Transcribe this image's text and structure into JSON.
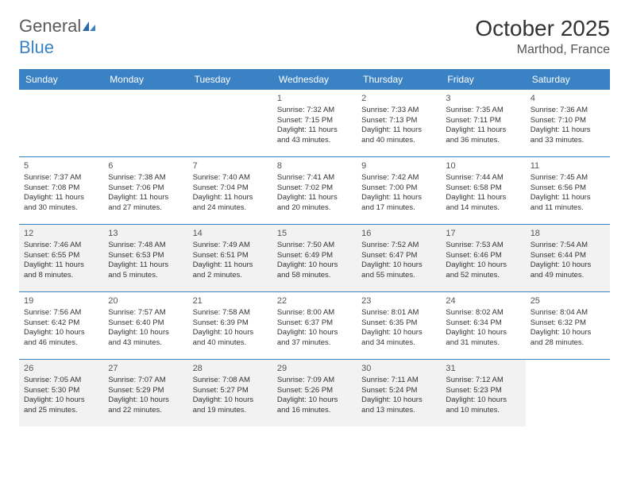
{
  "logo": {
    "text_general": "General",
    "text_blue": "Blue"
  },
  "title": "October 2025",
  "location": "Marthod, France",
  "colors": {
    "header_bg": "#3b82c4",
    "header_text": "#ffffff",
    "shaded_bg": "#f2f2f2",
    "border": "#3b82c4",
    "text": "#333333"
  },
  "day_names": [
    "Sunday",
    "Monday",
    "Tuesday",
    "Wednesday",
    "Thursday",
    "Friday",
    "Saturday"
  ],
  "weeks": [
    {
      "shaded": false,
      "days": [
        null,
        null,
        null,
        {
          "n": "1",
          "sr": "Sunrise: 7:32 AM",
          "ss": "Sunset: 7:15 PM",
          "d1": "Daylight: 11 hours",
          "d2": "and 43 minutes."
        },
        {
          "n": "2",
          "sr": "Sunrise: 7:33 AM",
          "ss": "Sunset: 7:13 PM",
          "d1": "Daylight: 11 hours",
          "d2": "and 40 minutes."
        },
        {
          "n": "3",
          "sr": "Sunrise: 7:35 AM",
          "ss": "Sunset: 7:11 PM",
          "d1": "Daylight: 11 hours",
          "d2": "and 36 minutes."
        },
        {
          "n": "4",
          "sr": "Sunrise: 7:36 AM",
          "ss": "Sunset: 7:10 PM",
          "d1": "Daylight: 11 hours",
          "d2": "and 33 minutes."
        }
      ]
    },
    {
      "shaded": false,
      "days": [
        {
          "n": "5",
          "sr": "Sunrise: 7:37 AM",
          "ss": "Sunset: 7:08 PM",
          "d1": "Daylight: 11 hours",
          "d2": "and 30 minutes."
        },
        {
          "n": "6",
          "sr": "Sunrise: 7:38 AM",
          "ss": "Sunset: 7:06 PM",
          "d1": "Daylight: 11 hours",
          "d2": "and 27 minutes."
        },
        {
          "n": "7",
          "sr": "Sunrise: 7:40 AM",
          "ss": "Sunset: 7:04 PM",
          "d1": "Daylight: 11 hours",
          "d2": "and 24 minutes."
        },
        {
          "n": "8",
          "sr": "Sunrise: 7:41 AM",
          "ss": "Sunset: 7:02 PM",
          "d1": "Daylight: 11 hours",
          "d2": "and 20 minutes."
        },
        {
          "n": "9",
          "sr": "Sunrise: 7:42 AM",
          "ss": "Sunset: 7:00 PM",
          "d1": "Daylight: 11 hours",
          "d2": "and 17 minutes."
        },
        {
          "n": "10",
          "sr": "Sunrise: 7:44 AM",
          "ss": "Sunset: 6:58 PM",
          "d1": "Daylight: 11 hours",
          "d2": "and 14 minutes."
        },
        {
          "n": "11",
          "sr": "Sunrise: 7:45 AM",
          "ss": "Sunset: 6:56 PM",
          "d1": "Daylight: 11 hours",
          "d2": "and 11 minutes."
        }
      ]
    },
    {
      "shaded": true,
      "days": [
        {
          "n": "12",
          "sr": "Sunrise: 7:46 AM",
          "ss": "Sunset: 6:55 PM",
          "d1": "Daylight: 11 hours",
          "d2": "and 8 minutes."
        },
        {
          "n": "13",
          "sr": "Sunrise: 7:48 AM",
          "ss": "Sunset: 6:53 PM",
          "d1": "Daylight: 11 hours",
          "d2": "and 5 minutes."
        },
        {
          "n": "14",
          "sr": "Sunrise: 7:49 AM",
          "ss": "Sunset: 6:51 PM",
          "d1": "Daylight: 11 hours",
          "d2": "and 2 minutes."
        },
        {
          "n": "15",
          "sr": "Sunrise: 7:50 AM",
          "ss": "Sunset: 6:49 PM",
          "d1": "Daylight: 10 hours",
          "d2": "and 58 minutes."
        },
        {
          "n": "16",
          "sr": "Sunrise: 7:52 AM",
          "ss": "Sunset: 6:47 PM",
          "d1": "Daylight: 10 hours",
          "d2": "and 55 minutes."
        },
        {
          "n": "17",
          "sr": "Sunrise: 7:53 AM",
          "ss": "Sunset: 6:46 PM",
          "d1": "Daylight: 10 hours",
          "d2": "and 52 minutes."
        },
        {
          "n": "18",
          "sr": "Sunrise: 7:54 AM",
          "ss": "Sunset: 6:44 PM",
          "d1": "Daylight: 10 hours",
          "d2": "and 49 minutes."
        }
      ]
    },
    {
      "shaded": false,
      "days": [
        {
          "n": "19",
          "sr": "Sunrise: 7:56 AM",
          "ss": "Sunset: 6:42 PM",
          "d1": "Daylight: 10 hours",
          "d2": "and 46 minutes."
        },
        {
          "n": "20",
          "sr": "Sunrise: 7:57 AM",
          "ss": "Sunset: 6:40 PM",
          "d1": "Daylight: 10 hours",
          "d2": "and 43 minutes."
        },
        {
          "n": "21",
          "sr": "Sunrise: 7:58 AM",
          "ss": "Sunset: 6:39 PM",
          "d1": "Daylight: 10 hours",
          "d2": "and 40 minutes."
        },
        {
          "n": "22",
          "sr": "Sunrise: 8:00 AM",
          "ss": "Sunset: 6:37 PM",
          "d1": "Daylight: 10 hours",
          "d2": "and 37 minutes."
        },
        {
          "n": "23",
          "sr": "Sunrise: 8:01 AM",
          "ss": "Sunset: 6:35 PM",
          "d1": "Daylight: 10 hours",
          "d2": "and 34 minutes."
        },
        {
          "n": "24",
          "sr": "Sunrise: 8:02 AM",
          "ss": "Sunset: 6:34 PM",
          "d1": "Daylight: 10 hours",
          "d2": "and 31 minutes."
        },
        {
          "n": "25",
          "sr": "Sunrise: 8:04 AM",
          "ss": "Sunset: 6:32 PM",
          "d1": "Daylight: 10 hours",
          "d2": "and 28 minutes."
        }
      ]
    },
    {
      "shaded": true,
      "days": [
        {
          "n": "26",
          "sr": "Sunrise: 7:05 AM",
          "ss": "Sunset: 5:30 PM",
          "d1": "Daylight: 10 hours",
          "d2": "and 25 minutes."
        },
        {
          "n": "27",
          "sr": "Sunrise: 7:07 AM",
          "ss": "Sunset: 5:29 PM",
          "d1": "Daylight: 10 hours",
          "d2": "and 22 minutes."
        },
        {
          "n": "28",
          "sr": "Sunrise: 7:08 AM",
          "ss": "Sunset: 5:27 PM",
          "d1": "Daylight: 10 hours",
          "d2": "and 19 minutes."
        },
        {
          "n": "29",
          "sr": "Sunrise: 7:09 AM",
          "ss": "Sunset: 5:26 PM",
          "d1": "Daylight: 10 hours",
          "d2": "and 16 minutes."
        },
        {
          "n": "30",
          "sr": "Sunrise: 7:11 AM",
          "ss": "Sunset: 5:24 PM",
          "d1": "Daylight: 10 hours",
          "d2": "and 13 minutes."
        },
        {
          "n": "31",
          "sr": "Sunrise: 7:12 AM",
          "ss": "Sunset: 5:23 PM",
          "d1": "Daylight: 10 hours",
          "d2": "and 10 minutes."
        },
        null
      ]
    }
  ]
}
